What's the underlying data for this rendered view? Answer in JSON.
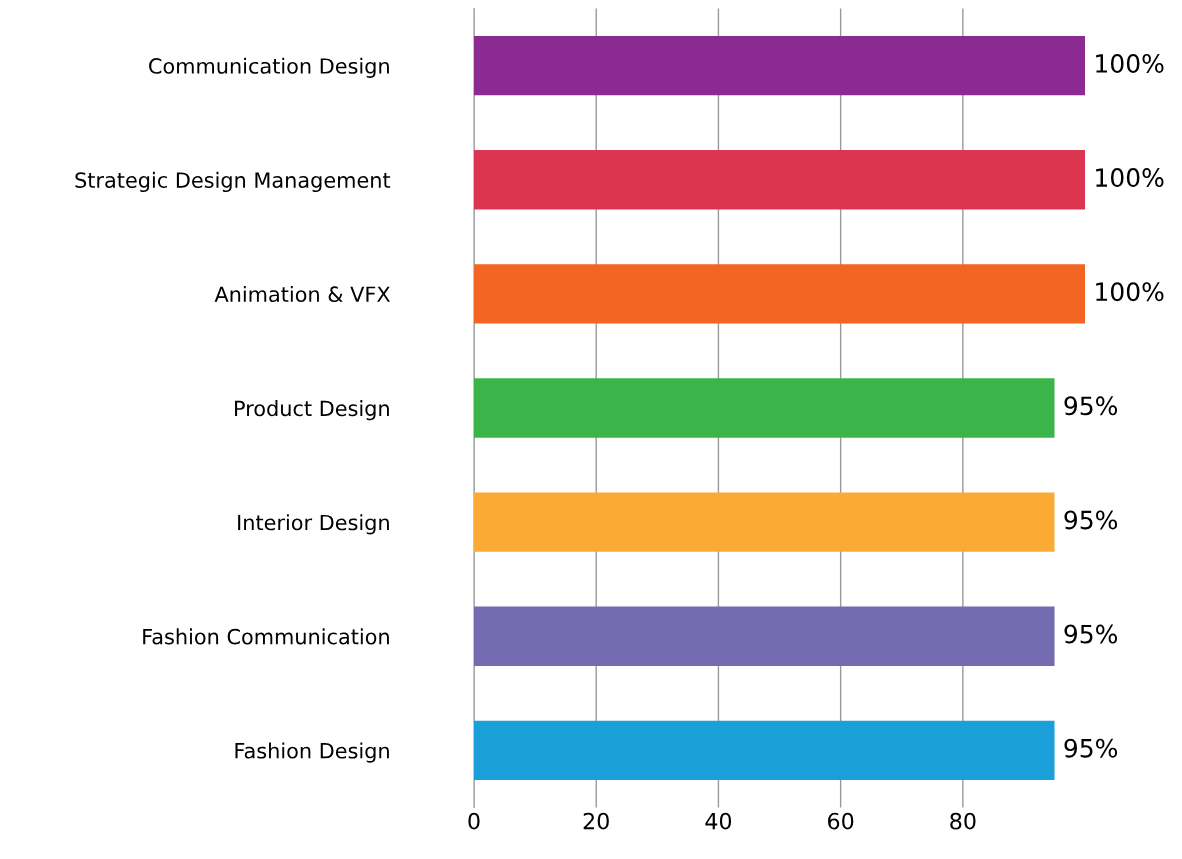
{
  "chart_data": {
    "type": "bar",
    "orientation": "horizontal",
    "categories": [
      "Communication Design",
      "Strategic Design Management",
      "Animation & VFX",
      "Product Design",
      "Interior Design",
      "Fashion Communication",
      "Fashion Design"
    ],
    "values": [
      100,
      100,
      100,
      95,
      95,
      95,
      95
    ],
    "value_labels": [
      "100%",
      "100%",
      "100%",
      "95%",
      "95%",
      "95%",
      "95%"
    ],
    "colors": [
      "#8b2a90",
      "#db3552",
      "#f26522",
      "#3bb54a",
      "#fbaa33",
      "#756bb0",
      "#1a9fd9"
    ],
    "xlim": [
      0,
      100
    ],
    "xticks": [
      0,
      20,
      40,
      60,
      80
    ],
    "grid": "x",
    "legend": false
  }
}
